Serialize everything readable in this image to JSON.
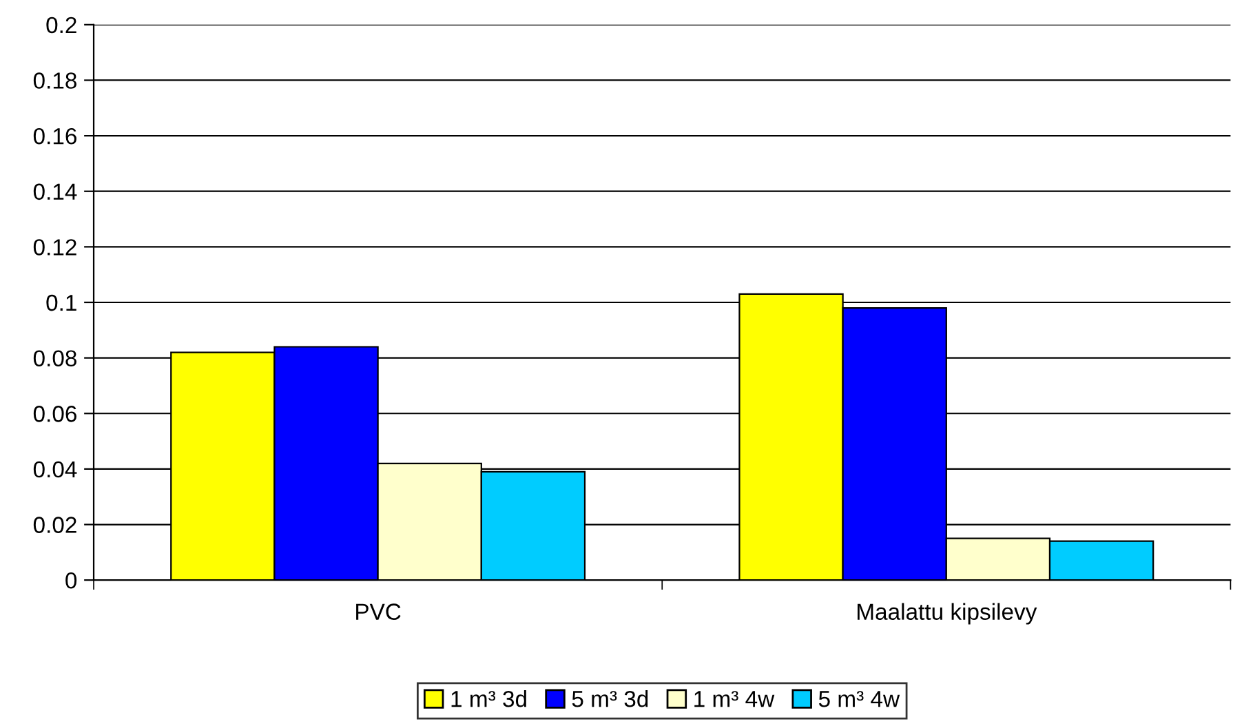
{
  "chart_data": {
    "type": "bar",
    "categories": [
      "PVC",
      "Maalattu kipsilevy"
    ],
    "series": [
      {
        "name": "1 m³ 3d",
        "color": "#ffff00",
        "values": [
          0.082,
          0.103
        ]
      },
      {
        "name": "5 m³ 3d",
        "color": "#0000ff",
        "values": [
          0.084,
          0.098
        ]
      },
      {
        "name": "1 m³ 4w",
        "color": "#ffffcc",
        "values": [
          0.042,
          0.015
        ]
      },
      {
        "name": "5 m³ 4w",
        "color": "#00ccff",
        "values": [
          0.039,
          0.014
        ]
      }
    ],
    "ylim": [
      0,
      0.2
    ],
    "yticks": [
      0,
      0.02,
      0.04,
      0.06,
      0.08,
      0.1,
      0.12,
      0.14,
      0.16,
      0.18,
      0.2
    ],
    "grid": "y",
    "legend": "bottom"
  }
}
